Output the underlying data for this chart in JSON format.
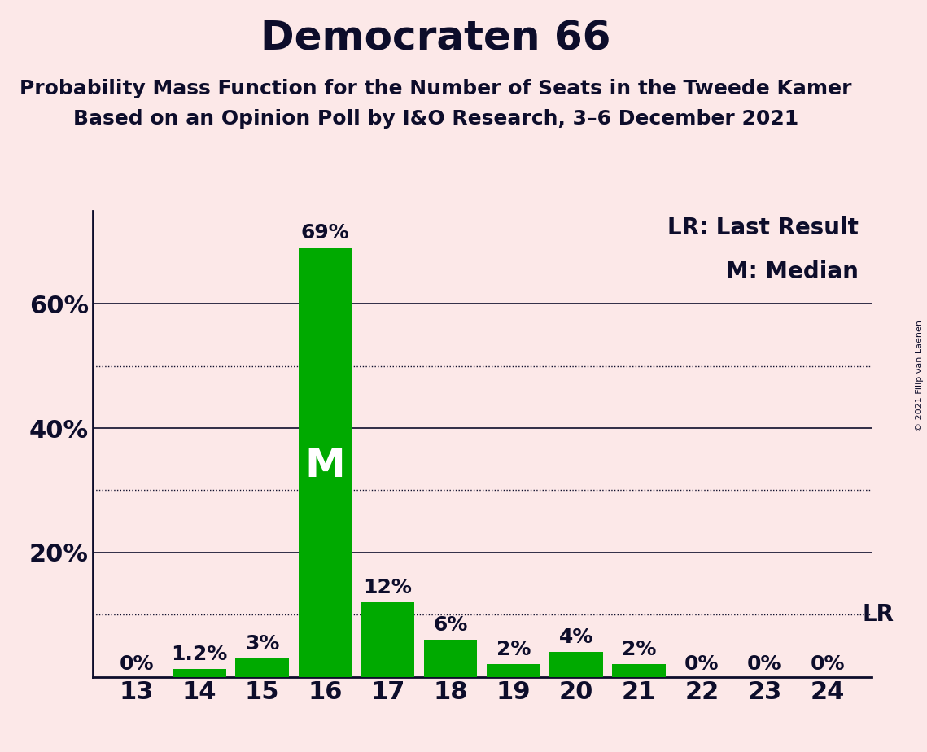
{
  "title": "Democraten 66",
  "subtitle1": "Probability Mass Function for the Number of Seats in the Tweede Kamer",
  "subtitle2": "Based on an Opinion Poll by I&O Research, 3–6 December 2021",
  "copyright": "© 2021 Filip van Laenen",
  "seats": [
    13,
    14,
    15,
    16,
    17,
    18,
    19,
    20,
    21,
    22,
    23,
    24
  ],
  "values": [
    0.0,
    1.2,
    3.0,
    69.0,
    12.0,
    6.0,
    2.0,
    4.0,
    2.0,
    0.0,
    0.0,
    0.0
  ],
  "labels": [
    "0%",
    "1.2%",
    "3%",
    "69%",
    "12%",
    "6%",
    "2%",
    "4%",
    "2%",
    "0%",
    "0%",
    "0%"
  ],
  "median_seat": 16,
  "lr_value": 10.0,
  "bar_color": "#00aa00",
  "background_color": "#fce8e8",
  "text_color": "#0d0d2b",
  "ylim": [
    0,
    75
  ],
  "solid_gridlines": [
    20,
    40,
    60
  ],
  "dotted_gridlines": [
    10,
    30,
    50
  ],
  "title_fontsize": 36,
  "subtitle_fontsize": 18,
  "axis_fontsize": 22,
  "bar_label_fontsize": 18,
  "legend_fontsize": 20,
  "median_label_fontsize": 36,
  "lr_label_fontsize": 20,
  "copyright_fontsize": 8
}
